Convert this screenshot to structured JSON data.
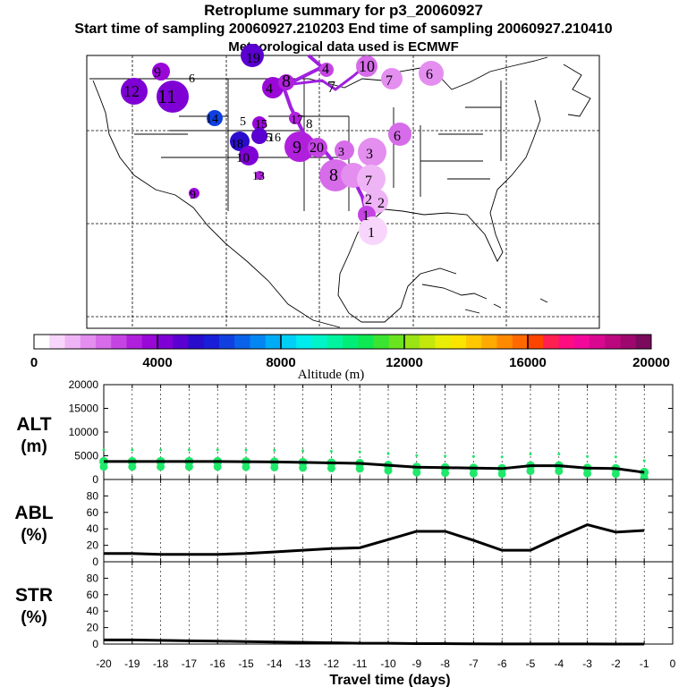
{
  "header": {
    "title": "Retroplume summary for p3_20060927",
    "sampling_line": "Start time of sampling 20060927.210203     End time of sampling 20060927.210410",
    "met_line": "Meteorological data used is ECMWF"
  },
  "map": {
    "plume_labels": [
      "1",
      "2",
      "2",
      "3",
      "4",
      "5",
      "6",
      "7",
      "8",
      "9",
      "10",
      "11",
      "12",
      "13",
      "14",
      "15",
      "16",
      "17",
      "18",
      "19",
      "20"
    ]
  },
  "colorbar": {
    "ticks": [
      "0",
      "4000",
      "8000",
      "12000",
      "16000",
      "20000"
    ],
    "label": "Altitude (m)",
    "colors": [
      "#ffffff",
      "#f8d6fb",
      "#efb4f6",
      "#e48ef0",
      "#d66ce9",
      "#c444e3",
      "#b020dc",
      "#9a08d8",
      "#7e00d4",
      "#5a00d0",
      "#2a0ccc",
      "#1a1ed8",
      "#1040e0",
      "#0a62ea",
      "#0486f2",
      "#00acf6",
      "#00d0f6",
      "#00ecec",
      "#00f4c8",
      "#00f4a0",
      "#00ee78",
      "#0ee852",
      "#3ae430",
      "#6ae41e",
      "#9ae414",
      "#c4e80c",
      "#e8ee06",
      "#fae400",
      "#ffc800",
      "#ffaa00",
      "#ff8a00",
      "#ff6a00",
      "#ff4400",
      "#ff2050",
      "#ff0c80",
      "#f2089a",
      "#d80890",
      "#bc087e",
      "#9e086e",
      "#7a0a5c"
    ]
  },
  "chart_data": [
    {
      "type": "line",
      "panel": "ALT",
      "ylabel": "ALT (m)",
      "x": [
        -20,
        -19,
        -18,
        -17,
        -16,
        -15,
        -14,
        -13,
        -12,
        -11,
        -10,
        -9,
        -8,
        -7,
        -6,
        -5,
        -4,
        -3,
        -2,
        -1
      ],
      "values": [
        3800,
        3800,
        3800,
        3800,
        3800,
        3750,
        3700,
        3600,
        3500,
        3400,
        3000,
        2600,
        2500,
        2400,
        2300,
        2900,
        2900,
        2400,
        2300,
        1500
      ],
      "xlim": [
        -20,
        0
      ],
      "ylim": [
        0,
        20000
      ],
      "yticks": [
        0,
        5000,
        10000,
        15000,
        20000
      ],
      "marker_color": "#1fe86a"
    },
    {
      "type": "line",
      "panel": "ABL",
      "ylabel": "ABL (%)",
      "x": [
        -20,
        -19,
        -18,
        -17,
        -16,
        -15,
        -14,
        -13,
        -12,
        -11,
        -10,
        -9,
        -8,
        -7,
        -6,
        -5,
        -4,
        -3,
        -2,
        -1
      ],
      "values": [
        10,
        10,
        9,
        9,
        9,
        10,
        12,
        14,
        16,
        17,
        27,
        37,
        37,
        26,
        14,
        14,
        30,
        45,
        36,
        38
      ],
      "xlim": [
        -20,
        0
      ],
      "ylim": [
        0,
        100
      ],
      "yticks": [
        0,
        20,
        40,
        60,
        80
      ]
    },
    {
      "type": "line",
      "panel": "STR",
      "ylabel": "STR (%)",
      "x": [
        -20,
        -19,
        -18,
        -17,
        -16,
        -15,
        -14,
        -13,
        -12,
        -11,
        -10,
        -9,
        -8,
        -7,
        -6,
        -5,
        -4,
        -3,
        -2,
        -1
      ],
      "values": [
        5,
        5,
        4.5,
        4,
        3.5,
        3,
        2.5,
        2,
        1.5,
        1,
        1,
        0.5,
        0.5,
        0.3,
        0.2,
        0.2,
        0.1,
        0.1,
        0,
        0
      ],
      "xlim": [
        -20,
        0
      ],
      "ylim": [
        0,
        100
      ],
      "yticks": [
        0,
        20,
        40,
        60,
        80
      ],
      "xlabel": "Travel time (days)",
      "xticks": [
        "-20",
        "-19",
        "-18",
        "-17",
        "-16",
        "-15",
        "-14",
        "-13",
        "-12",
        "-11",
        "-10",
        "-9",
        "-8",
        "-7",
        "-6",
        "-5",
        "-4",
        "-3",
        "-2",
        "-1",
        "0"
      ]
    }
  ]
}
